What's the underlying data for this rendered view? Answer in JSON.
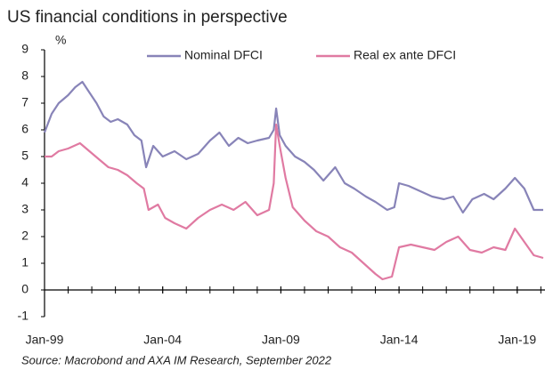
{
  "chart_data": {
    "type": "line",
    "title": "US financial conditions in perspective",
    "y_unit": "%",
    "source": "Source: Macrobond and AXA IM Research, September 2022",
    "xlim": [
      1999,
      2020.1
    ],
    "xticks": [
      {
        "value": 1999,
        "label": "Jan-99"
      },
      {
        "value": 2004,
        "label": "Jan-04"
      },
      {
        "value": 2009,
        "label": "Jan-09"
      },
      {
        "value": 2014,
        "label": "Jan-14"
      },
      {
        "value": 2019,
        "label": "Jan-19"
      }
    ],
    "xminorticks": [
      1999,
      2000,
      2001,
      2002,
      2003,
      2004,
      2005,
      2006,
      2007,
      2008,
      2009,
      2010,
      2011,
      2012,
      2013,
      2014,
      2015,
      2016,
      2017,
      2018,
      2019,
      2020
    ],
    "ylim": [
      -1,
      9
    ],
    "yticks": [
      -1,
      0,
      1,
      2,
      3,
      4,
      5,
      6,
      7,
      8,
      9
    ],
    "legend": "top",
    "series": [
      {
        "name": "Nominal DFCI",
        "color": "#8884b8",
        "x": [
          1999.0,
          1999.3,
          1999.6,
          2000.0,
          2000.3,
          2000.6,
          2000.9,
          2001.2,
          2001.5,
          2001.8,
          2002.1,
          2002.5,
          2002.8,
          2003.1,
          2003.3,
          2003.6,
          2004.0,
          2004.5,
          2005.0,
          2005.5,
          2006.0,
          2006.4,
          2006.8,
          2007.2,
          2007.6,
          2008.0,
          2008.5,
          2008.7,
          2008.8,
          2008.95,
          2009.2,
          2009.6,
          2010.0,
          2010.4,
          2010.8,
          2011.3,
          2011.7,
          2012.1,
          2012.6,
          2013.0,
          2013.5,
          2013.8,
          2014.0,
          2014.4,
          2014.9,
          2015.4,
          2015.9,
          2016.3,
          2016.7,
          2017.1,
          2017.6,
          2018.0,
          2018.5,
          2018.9,
          2019.3,
          2019.7,
          2020.1
        ],
        "values": [
          5.9,
          6.6,
          7.0,
          7.3,
          7.6,
          7.8,
          7.4,
          7.0,
          6.5,
          6.3,
          6.4,
          6.2,
          5.8,
          5.6,
          4.6,
          5.4,
          5.0,
          5.2,
          4.9,
          5.1,
          5.6,
          5.9,
          5.4,
          5.7,
          5.5,
          5.6,
          5.7,
          6.0,
          6.8,
          5.8,
          5.4,
          5.0,
          4.8,
          4.5,
          4.1,
          4.6,
          4.0,
          3.8,
          3.5,
          3.3,
          3.0,
          3.1,
          4.0,
          3.9,
          3.7,
          3.5,
          3.4,
          3.5,
          2.9,
          3.4,
          3.6,
          3.4,
          3.8,
          4.2,
          3.8,
          3.0,
          3.0
        ]
      },
      {
        "name": "Real ex ante DFCI",
        "color": "#e07aa2",
        "x": [
          1999.0,
          1999.3,
          1999.6,
          2000.0,
          2000.5,
          2000.9,
          2001.3,
          2001.7,
          2002.1,
          2002.5,
          2002.9,
          2003.2,
          2003.4,
          2003.8,
          2004.1,
          2004.5,
          2005.0,
          2005.5,
          2006.0,
          2006.5,
          2007.0,
          2007.5,
          2008.0,
          2008.5,
          2008.7,
          2008.8,
          2008.95,
          2009.2,
          2009.5,
          2010.0,
          2010.5,
          2011.0,
          2011.5,
          2012.0,
          2012.5,
          2013.0,
          2013.3,
          2013.7,
          2014.0,
          2014.5,
          2015.0,
          2015.5,
          2016.0,
          2016.5,
          2017.0,
          2017.5,
          2018.0,
          2018.5,
          2018.9,
          2019.3,
          2019.7,
          2020.1
        ],
        "values": [
          5.0,
          5.0,
          5.2,
          5.3,
          5.5,
          5.2,
          4.9,
          4.6,
          4.5,
          4.3,
          4.0,
          3.8,
          3.0,
          3.2,
          2.7,
          2.5,
          2.3,
          2.7,
          3.0,
          3.2,
          3.0,
          3.3,
          2.8,
          3.0,
          4.0,
          6.2,
          5.4,
          4.2,
          3.1,
          2.6,
          2.2,
          2.0,
          1.6,
          1.4,
          1.0,
          0.6,
          0.4,
          0.5,
          1.6,
          1.7,
          1.6,
          1.5,
          1.8,
          2.0,
          1.5,
          1.4,
          1.6,
          1.5,
          2.3,
          1.8,
          1.3,
          1.2
        ]
      }
    ]
  }
}
